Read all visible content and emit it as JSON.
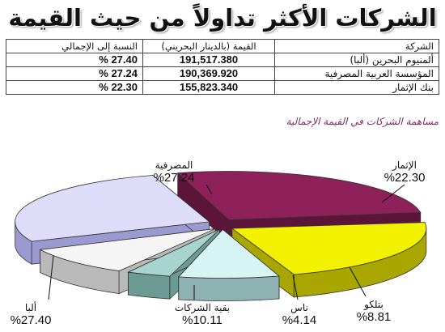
{
  "title": "الشركات الأكثر تداولاً من حيث القيمة",
  "table": {
    "headers": {
      "company": "الشركة",
      "value": "القيمة (بالدينار البحريني)",
      "share": "النسبة إلى الإجمالي"
    },
    "rows": [
      {
        "company": "ألمنيوم البحرين (ألبا)",
        "value": "191,517.380",
        "share": "27.40 %"
      },
      {
        "company": "المؤسسة العربية المصرفية",
        "value": "190,369.920",
        "share": "27.24 %"
      },
      {
        "company": "بنك الإثمار",
        "value": "155,823.340",
        "share": "22.30 %"
      }
    ]
  },
  "chart_data": {
    "type": "pie",
    "subtitle": "مساهمة الشركات في القيمة الإجمالية",
    "slices": [
      {
        "name": "الإثمار",
        "value": 22.3,
        "label": "%22.30",
        "color": "#f2f200",
        "side": "#a9a600"
      },
      {
        "name": "بتلكو",
        "value": 8.81,
        "label": "%8.81",
        "color": "#d7f4f4",
        "side": "#8fb3b3"
      },
      {
        "name": "ناس",
        "value": 4.14,
        "label": "%4.14",
        "color": "#a8d4cf",
        "side": "#6c9a95"
      },
      {
        "name": "بقية الشركات",
        "value": 10.11,
        "label": "%10.11",
        "color": "#f5f5f5",
        "side": "#b9b9b9"
      },
      {
        "name": "ألبا",
        "value": 27.4,
        "label": "%27.40",
        "color": "#ddddfa",
        "side": "#9a9ad0"
      },
      {
        "name": "المصرفية",
        "value": 27.24,
        "label": "%27.24",
        "color": "#8e2159",
        "side": "#5c1439"
      }
    ]
  }
}
